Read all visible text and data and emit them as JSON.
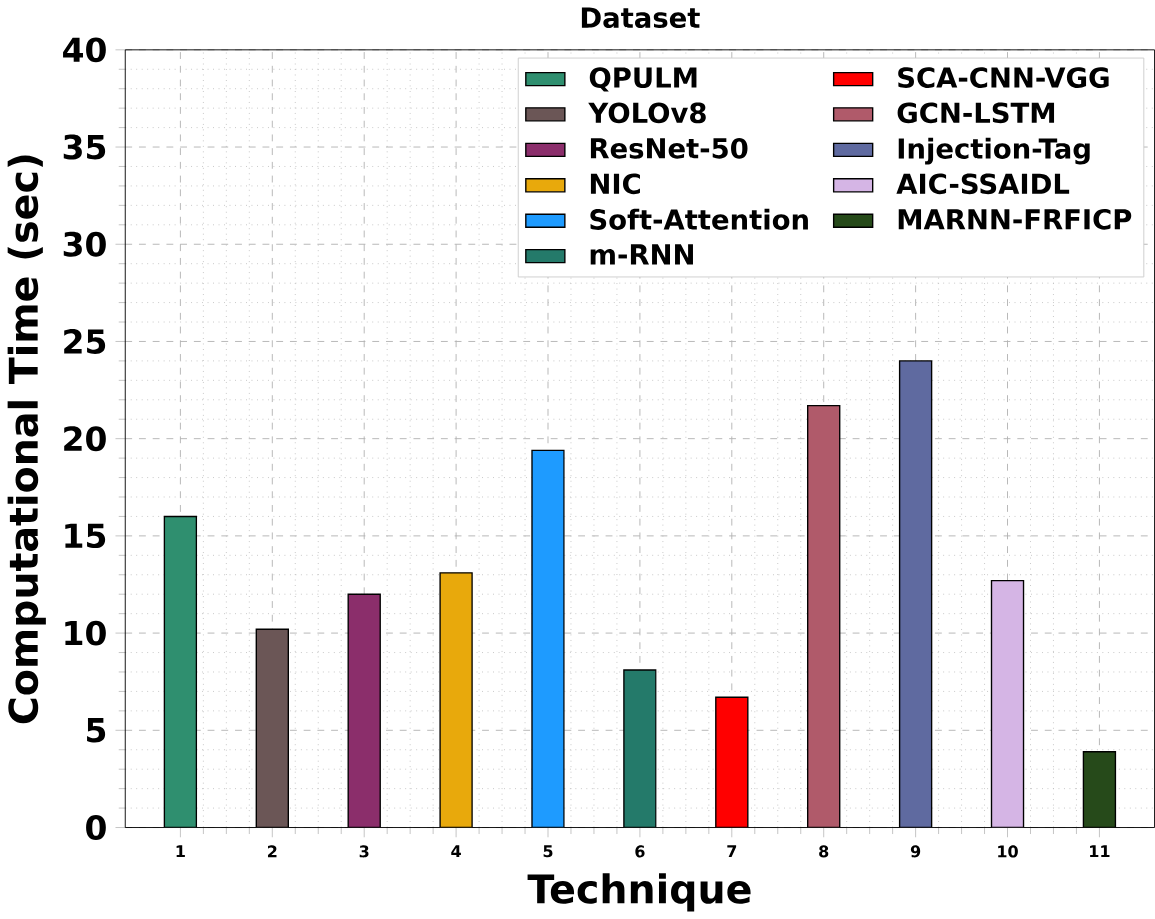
{
  "chart_data": {
    "type": "bar",
    "title": "Dataset",
    "xlabel": "Technique",
    "ylabel": "Computational Time (sec)",
    "categories": [
      "1",
      "2",
      "3",
      "4",
      "5",
      "6",
      "7",
      "8",
      "9",
      "10",
      "11"
    ],
    "series": [
      {
        "name": "QPULM",
        "color": "#2f8f6f",
        "values": [
          16.0,
          null,
          null,
          null,
          null,
          null,
          null,
          null,
          null,
          null,
          null
        ]
      },
      {
        "name": "YOLOv8",
        "color": "#6b5656",
        "values": [
          null,
          10.2,
          null,
          null,
          null,
          null,
          null,
          null,
          null,
          null,
          null
        ]
      },
      {
        "name": "ResNet-50",
        "color": "#8b2e6b",
        "values": [
          null,
          null,
          12.0,
          null,
          null,
          null,
          null,
          null,
          null,
          null,
          null
        ]
      },
      {
        "name": "NIC",
        "color": "#e8a90c",
        "values": [
          null,
          null,
          null,
          13.1,
          null,
          null,
          null,
          null,
          null,
          null,
          null
        ]
      },
      {
        "name": "Soft-Attention",
        "color": "#1e9bff",
        "values": [
          null,
          null,
          null,
          null,
          19.4,
          null,
          null,
          null,
          null,
          null,
          null
        ]
      },
      {
        "name": "m-RNN",
        "color": "#247a6a",
        "values": [
          null,
          null,
          null,
          null,
          null,
          8.1,
          null,
          null,
          null,
          null,
          null
        ]
      },
      {
        "name": "SCA-CNN-VGG",
        "color": "#ff0000",
        "values": [
          null,
          null,
          null,
          null,
          null,
          null,
          6.7,
          null,
          null,
          null,
          null
        ]
      },
      {
        "name": "GCN-LSTM",
        "color": "#b05a6a",
        "values": [
          null,
          null,
          null,
          null,
          null,
          null,
          null,
          21.7,
          null,
          null,
          null
        ]
      },
      {
        "name": "Injection-Tag",
        "color": "#5f6aa0",
        "values": [
          null,
          null,
          null,
          null,
          null,
          null,
          null,
          null,
          24.0,
          null,
          null
        ]
      },
      {
        "name": "AIC-SSAIDL",
        "color": "#d5b5e5",
        "values": [
          null,
          null,
          null,
          null,
          null,
          null,
          null,
          null,
          null,
          12.7,
          null
        ]
      },
      {
        "name": "MARNN-FRFICP",
        "color": "#264a1a",
        "values": [
          null,
          null,
          null,
          null,
          null,
          null,
          null,
          null,
          null,
          null,
          3.9
        ]
      }
    ],
    "ylim": [
      0,
      40
    ],
    "yticks": [
      0,
      5,
      10,
      15,
      20,
      25,
      30,
      35,
      40
    ],
    "grid": true,
    "legend": "top right"
  }
}
